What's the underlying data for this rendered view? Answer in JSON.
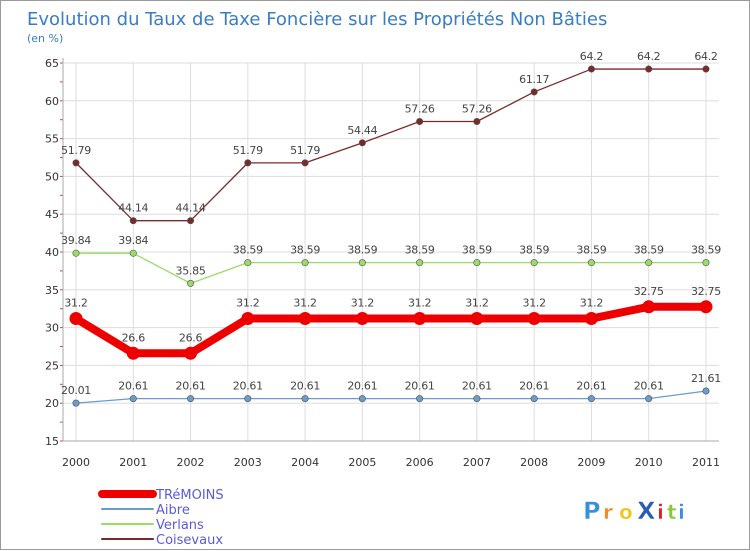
{
  "chart_data": {
    "type": "line",
    "title": "Evolution du Taux de Taxe Foncière sur les Propriétés Non Bâties",
    "ylabel": "(en %)",
    "xlabel": "",
    "ylim": [
      15,
      65
    ],
    "y_ticks": [
      15,
      20,
      25,
      30,
      35,
      40,
      45,
      50,
      55,
      60,
      65
    ],
    "x": [
      "2000",
      "2001",
      "2002",
      "2003",
      "2004",
      "2005",
      "2006",
      "2007",
      "2008",
      "2009",
      "2010",
      "2011"
    ],
    "grid": true,
    "legend_position": "bottom-left",
    "series": [
      {
        "name": "TRéMOINS",
        "color": "#ee0000",
        "values": [
          31.2,
          26.6,
          26.6,
          31.2,
          31.2,
          31.2,
          31.2,
          31.2,
          31.2,
          31.2,
          32.75,
          32.75
        ],
        "labels": [
          "31.2",
          "26.6",
          "26.6",
          "31.2",
          "31.2",
          "31.2",
          "31.2",
          "31.2",
          "31.2",
          "31.2",
          "32.75",
          "32.75"
        ]
      },
      {
        "name": "Aibre",
        "color": "#6a9ccc",
        "values": [
          20.01,
          20.61,
          20.61,
          20.61,
          20.61,
          20.61,
          20.61,
          20.61,
          20.61,
          20.61,
          20.61,
          21.61
        ],
        "labels": [
          "20.01",
          "20.61",
          "20.61",
          "20.61",
          "20.61",
          "20.61",
          "20.61",
          "20.61",
          "20.61",
          "20.61",
          "20.61",
          "21.61"
        ]
      },
      {
        "name": "Verlans",
        "color": "#99dd66",
        "values": [
          39.84,
          39.84,
          35.85,
          38.59,
          38.59,
          38.59,
          38.59,
          38.59,
          38.59,
          38.59,
          38.59,
          38.59
        ],
        "labels": [
          "39.84",
          "39.84",
          "35.85",
          "38.59",
          "38.59",
          "38.59",
          "38.59",
          "38.59",
          "38.59",
          "38.59",
          "38.59",
          "38.59"
        ]
      },
      {
        "name": "Coisevaux",
        "color": "#7a2a2a",
        "values": [
          51.79,
          44.14,
          44.14,
          51.79,
          51.79,
          54.44,
          57.26,
          57.26,
          61.17,
          64.2,
          64.2,
          64.2
        ],
        "labels": [
          "51.79",
          "44.14",
          "44.14",
          "51.79",
          "51.79",
          "54.44",
          "57.26",
          "57.26",
          "61.17",
          "64.2",
          "64.2",
          "64.2"
        ]
      }
    ]
  },
  "logo": {
    "text": "ProXiti",
    "letters": [
      "P",
      "r",
      "o",
      "X",
      "i",
      "t",
      "i"
    ],
    "colors": [
      "#3a8fd8",
      "#f08a1c",
      "#f0c419",
      "#2a5fb0",
      "#e02020",
      "#8cc63f",
      "#3a8fd8"
    ]
  }
}
